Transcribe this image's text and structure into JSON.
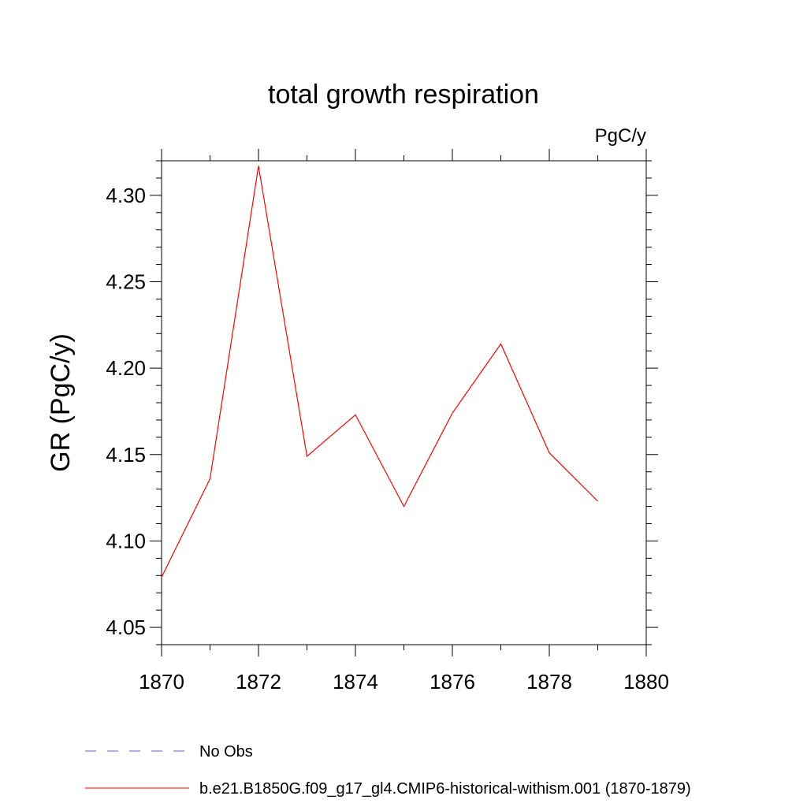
{
  "chart_data": {
    "type": "line",
    "title": "total growth respiration",
    "units_label": "PgC/y",
    "ylabel": "GR  (PgC/y)",
    "xlabel": "",
    "xlim": [
      1870,
      1880
    ],
    "ylim": [
      4.04,
      4.32
    ],
    "x_ticks": [
      1870,
      1872,
      1874,
      1876,
      1878,
      1880
    ],
    "x_tick_labels": [
      "1870",
      "1872",
      "1874",
      "1876",
      "1878",
      "1880"
    ],
    "y_ticks": [
      4.05,
      4.1,
      4.15,
      4.2,
      4.25,
      4.3
    ],
    "y_tick_labels": [
      "4.05",
      "4.10",
      "4.15",
      "4.20",
      "4.25",
      "4.30"
    ],
    "grid": false,
    "legend_position": "bottom",
    "series": [
      {
        "name": "b.e21.B1850G.f09_g17_gl4.CMIP6-historical-withism.001 (1870-1879)",
        "color": "#ff0000",
        "style": "solid",
        "x": [
          1870,
          1871,
          1872,
          1873,
          1874,
          1875,
          1876,
          1877,
          1878,
          1879
        ],
        "values": [
          4.079,
          4.136,
          4.317,
          4.149,
          4.173,
          4.12,
          4.174,
          4.214,
          4.151,
          4.123
        ]
      }
    ],
    "legend": [
      {
        "label": "No Obs",
        "color": "#6a5acd",
        "style": "dashed"
      },
      {
        "label": "b.e21.B1850G.f09_g17_gl4.CMIP6-historical-withism.001 (1870-1879)",
        "color": "#ff0000",
        "style": "solid"
      }
    ]
  }
}
